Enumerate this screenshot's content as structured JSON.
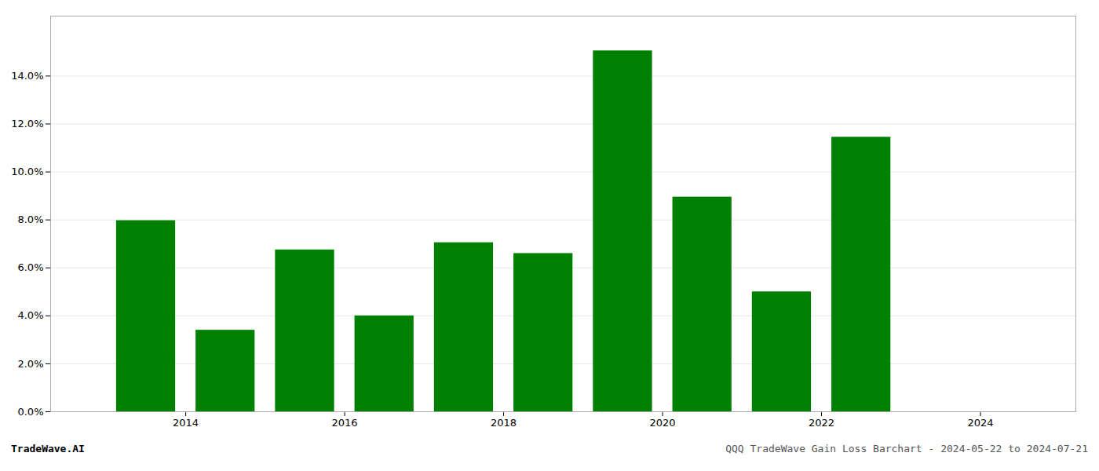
{
  "chart_data": {
    "type": "bar",
    "title": "QQQ TradeWave Gain Loss Barchart - 2024-05-22 to 2024-07-21",
    "annotations": [
      "TradeWave.AI"
    ],
    "x": [
      2013,
      2014,
      2015,
      2016,
      2017,
      2018,
      2019,
      2020,
      2021,
      2022
    ],
    "values": [
      0.0797,
      0.034,
      0.0675,
      0.04,
      0.0705,
      0.066,
      0.1505,
      0.0895,
      0.05,
      0.1145
    ],
    "color": "#008000",
    "xlim": [
      2012.3,
      2025.2
    ],
    "xticks": [
      2014,
      2016,
      2018,
      2020,
      2022,
      2024
    ],
    "ylim": [
      0,
      0.165
    ],
    "yticks": [
      {
        "value": 0.0,
        "label": "0.0%"
      },
      {
        "value": 0.02,
        "label": "2.0%"
      },
      {
        "value": 0.04,
        "label": "4.0%"
      },
      {
        "value": 0.06,
        "label": "6.0%"
      },
      {
        "value": 0.08,
        "label": "8.0%"
      },
      {
        "value": 0.1,
        "label": "10.0%"
      },
      {
        "value": 0.12,
        "label": "12.0%"
      },
      {
        "value": 0.14,
        "label": "14.0%"
      }
    ],
    "grid": true
  }
}
